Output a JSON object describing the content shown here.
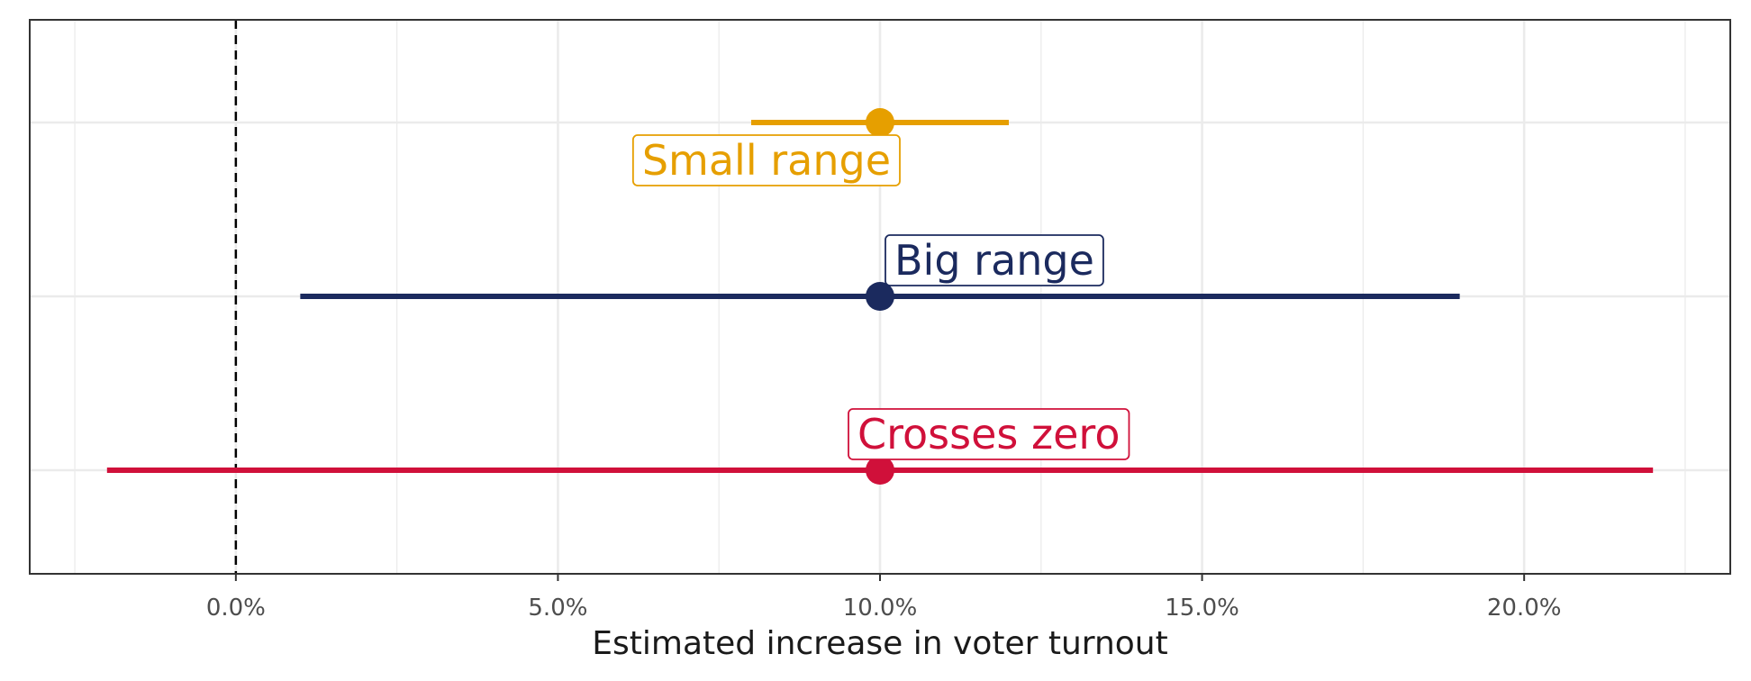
{
  "chart_data": {
    "type": "errorbar",
    "xlabel": "Estimated increase in voter turnout",
    "xlim": [
      -0.032,
      0.232
    ],
    "x_ticks": [
      0.0,
      0.05,
      0.1,
      0.15,
      0.2
    ],
    "x_tick_labels": [
      "0.0%",
      "5.0%",
      "10.0%",
      "15.0%",
      "20.0%"
    ],
    "reference_line": {
      "x": 0.0,
      "style": "dashed"
    },
    "grid": true,
    "series": [
      {
        "name": "Small range",
        "estimate": 0.1,
        "low": 0.08,
        "high": 0.12,
        "color": "#E69F00",
        "label_position": "below-left"
      },
      {
        "name": "Big range",
        "estimate": 0.1,
        "low": 0.01,
        "high": 0.19,
        "color": "#1B2A5E",
        "label_position": "above-right"
      },
      {
        "name": "Crosses zero",
        "estimate": 0.1,
        "low": -0.02,
        "high": 0.22,
        "color": "#D0103A",
        "label_position": "above"
      }
    ]
  }
}
